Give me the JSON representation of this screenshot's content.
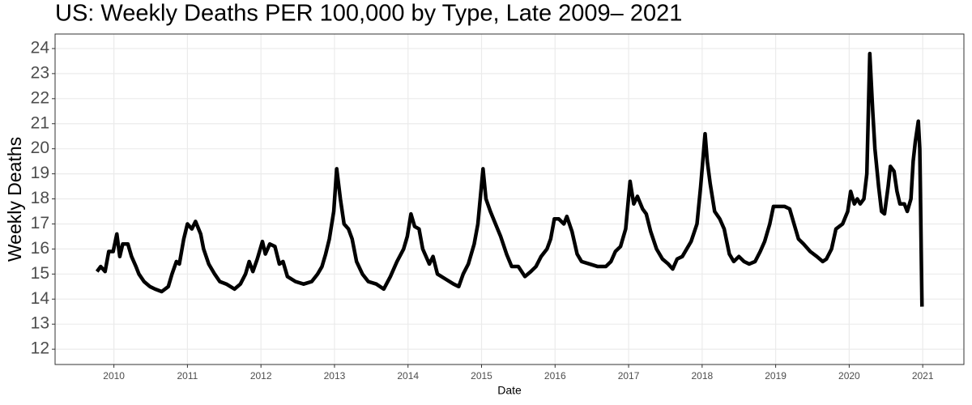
{
  "chart_data": {
    "type": "line",
    "title": "US: Weekly Deaths PER 100,000 by Type, Late 2009– 2021",
    "x_label": "Date",
    "y_label": "Weekly Deaths",
    "x": [
      2009.77,
      2009.82,
      2009.88,
      2009.93,
      2009.99,
      2010.04,
      2010.08,
      2010.12,
      2010.19,
      2010.24,
      2010.3,
      2010.34,
      2010.41,
      2010.49,
      2010.56,
      2010.65,
      2010.74,
      2010.79,
      2010.85,
      2010.89,
      2010.95,
      2011.0,
      2011.06,
      2011.11,
      2011.18,
      2011.22,
      2011.29,
      2011.37,
      2011.44,
      2011.53,
      2011.64,
      2011.72,
      2011.79,
      2011.84,
      2011.89,
      2011.95,
      2012.02,
      2012.06,
      2012.12,
      2012.19,
      2012.25,
      2012.3,
      2012.36,
      2012.47,
      2012.58,
      2012.69,
      2012.77,
      2012.83,
      2012.88,
      2012.93,
      2012.99,
      2013.03,
      2013.08,
      2013.13,
      2013.19,
      2013.24,
      2013.3,
      2013.38,
      2013.46,
      2013.57,
      2013.67,
      2013.76,
      2013.85,
      2013.94,
      2013.99,
      2014.04,
      2014.09,
      2014.15,
      2014.2,
      2014.29,
      2014.34,
      2014.4,
      2014.51,
      2014.62,
      2014.69,
      2014.75,
      2014.82,
      2014.9,
      2014.95,
      2015.02,
      2015.06,
      2015.12,
      2015.19,
      2015.26,
      2015.34,
      2015.41,
      2015.5,
      2015.59,
      2015.67,
      2015.74,
      2015.81,
      2015.89,
      2015.94,
      2015.99,
      2016.05,
      2016.12,
      2016.16,
      2016.23,
      2016.3,
      2016.36,
      2016.47,
      2016.58,
      2016.69,
      2016.76,
      2016.82,
      2016.89,
      2016.96,
      2017.02,
      2017.07,
      2017.12,
      2017.19,
      2017.24,
      2017.3,
      2017.38,
      2017.46,
      2017.54,
      2017.6,
      2017.66,
      2017.73,
      2017.79,
      2017.85,
      2017.93,
      2017.98,
      2018.04,
      2018.07,
      2018.11,
      2018.17,
      2018.24,
      2018.3,
      2018.37,
      2018.43,
      2018.5,
      2018.57,
      2018.64,
      2018.72,
      2018.79,
      2018.85,
      2018.92,
      2018.97,
      2019.05,
      2019.12,
      2019.19,
      2019.25,
      2019.31,
      2019.38,
      2019.47,
      2019.56,
      2019.64,
      2019.69,
      2019.76,
      2019.82,
      2019.91,
      2019.98,
      2020.02,
      2020.07,
      2020.11,
      2020.15,
      2020.2,
      2020.24,
      2020.28,
      2020.32,
      2020.35,
      2020.4,
      2020.44,
      2020.48,
      2020.53,
      2020.56,
      2020.61,
      2020.65,
      2020.69,
      2020.75,
      2020.79,
      2020.84,
      2020.87,
      2020.9,
      2020.94,
      2020.96,
      2020.99
    ],
    "values": [
      15.1,
      15.3,
      15.1,
      15.9,
      15.9,
      16.6,
      15.7,
      16.2,
      16.2,
      15.7,
      15.3,
      15.0,
      14.7,
      14.5,
      14.4,
      14.3,
      14.5,
      15.0,
      15.5,
      15.4,
      16.4,
      17.0,
      16.8,
      17.1,
      16.6,
      16.0,
      15.4,
      15.0,
      14.7,
      14.6,
      14.4,
      14.6,
      15.0,
      15.5,
      15.1,
      15.6,
      16.3,
      15.8,
      16.2,
      16.1,
      15.4,
      15.5,
      14.9,
      14.7,
      14.6,
      14.7,
      15.0,
      15.3,
      15.8,
      16.4,
      17.5,
      19.2,
      18.0,
      17.0,
      16.8,
      16.4,
      15.5,
      15.0,
      14.7,
      14.6,
      14.4,
      14.9,
      15.5,
      16.0,
      16.5,
      17.4,
      16.9,
      16.8,
      16.0,
      15.4,
      15.7,
      15.0,
      14.8,
      14.6,
      14.5,
      15.0,
      15.4,
      16.2,
      17.0,
      19.2,
      18.0,
      17.5,
      17.0,
      16.5,
      15.8,
      15.3,
      15.3,
      14.9,
      15.1,
      15.3,
      15.7,
      16.0,
      16.4,
      17.2,
      17.2,
      17.0,
      17.3,
      16.7,
      15.8,
      15.5,
      15.4,
      15.3,
      15.3,
      15.5,
      15.9,
      16.1,
      16.8,
      18.7,
      17.8,
      18.1,
      17.6,
      17.4,
      16.7,
      16.0,
      15.6,
      15.4,
      15.2,
      15.6,
      15.7,
      16.0,
      16.3,
      17.0,
      18.5,
      20.6,
      19.5,
      18.6,
      17.5,
      17.2,
      16.8,
      15.8,
      15.5,
      15.7,
      15.5,
      15.4,
      15.5,
      15.9,
      16.3,
      17.0,
      17.7,
      17.7,
      17.7,
      17.6,
      17.0,
      16.4,
      16.2,
      15.9,
      15.7,
      15.5,
      15.6,
      16.0,
      16.8,
      17.0,
      17.5,
      18.3,
      17.8,
      18.0,
      17.8,
      18.0,
      19.0,
      23.8,
      21.5,
      20.0,
      18.5,
      17.5,
      17.4,
      18.5,
      19.3,
      19.1,
      18.3,
      17.8,
      17.8,
      17.5,
      18.0,
      19.5,
      20.3,
      21.1,
      20.0,
      13.7
    ],
    "color": "#000000",
    "xlim": [
      2009.2,
      2021.56
    ],
    "xticks": [
      2010,
      2011,
      2012,
      2013,
      2014,
      2015,
      2016,
      2017,
      2018,
      2019,
      2020,
      2021
    ],
    "ylim": [
      11.39,
      24.58
    ],
    "yticks": [
      12,
      13,
      14,
      15,
      16,
      17,
      18,
      19,
      20,
      21,
      22,
      23,
      24
    ],
    "grid": true
  }
}
